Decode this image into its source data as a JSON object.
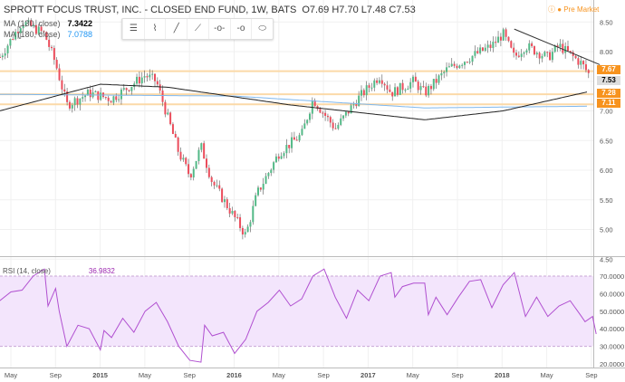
{
  "header": {
    "title": "SPROTT FOCUS TRUST, INC. - CLOSED END FUND, 1W, BATS",
    "ohlc": "O7.69 H7.70 L7.48 C7.53",
    "pre_market": "Pre Market"
  },
  "indicators": {
    "ma130": {
      "label": "MA (130, close)",
      "value": "7.3422",
      "color": "#000000"
    },
    "ma180": {
      "label": "MA (180, close)",
      "value": "7.0788",
      "color": "#2196f3"
    },
    "rsi": {
      "label": "RSI (14, close)",
      "value": "36.9832",
      "color": "#9c27b0"
    }
  },
  "toolbar": [
    "horizontal-lines-icon",
    "path-icon",
    "line-icon",
    "extended-line-icon",
    "horizontal-ray-icon",
    "ray-icon",
    "ellipse-icon"
  ],
  "chart_data": [
    {
      "type": "candlestick",
      "ylim": [
        4.5,
        8.85
      ],
      "y_ticks": [
        "8.50",
        "8.00",
        "7.50",
        "7.00",
        "6.50",
        "6.00",
        "5.50",
        "5.00",
        "4.50"
      ],
      "x_ticks": [
        "May",
        "Sep",
        "2015",
        "May",
        "Sep",
        "2016",
        "May",
        "Sep",
        "2017",
        "May",
        "Sep",
        "2018",
        "May",
        "Sep"
      ],
      "close_path": [
        [
          "2014-04",
          7.9
        ],
        [
          "2014-06",
          8.5
        ],
        [
          "2014-08",
          8.3
        ],
        [
          "2014-09",
          7.8
        ],
        [
          "2014-10",
          7.1
        ],
        [
          "2014-12",
          7.3
        ],
        [
          "2015-02",
          7.2
        ],
        [
          "2015-05",
          7.6
        ],
        [
          "2015-06",
          7.5
        ],
        [
          "2015-08",
          6.3
        ],
        [
          "2015-09",
          5.9
        ],
        [
          "2015-10",
          6.4
        ],
        [
          "2015-11",
          5.8
        ],
        [
          "2016-01",
          5.2
        ],
        [
          "2016-02",
          4.9
        ],
        [
          "2016-03",
          5.6
        ],
        [
          "2016-05",
          6.3
        ],
        [
          "2016-07",
          6.6
        ],
        [
          "2016-08",
          7.2
        ],
        [
          "2016-10",
          6.7
        ],
        [
          "2016-12",
          7.2
        ],
        [
          "2017-02",
          7.6
        ],
        [
          "2017-03",
          7.3
        ],
        [
          "2017-05",
          7.5
        ],
        [
          "2017-06",
          7.3
        ],
        [
          "2017-08",
          7.7
        ],
        [
          "2017-10",
          7.9
        ],
        [
          "2017-12",
          8.1
        ],
        [
          "2018-01",
          8.3
        ],
        [
          "2018-02",
          7.9
        ],
        [
          "2018-03",
          8.1
        ],
        [
          "2018-05",
          7.9
        ],
        [
          "2018-06",
          8.1
        ],
        [
          "2018-08",
          7.8
        ],
        [
          "2018-09",
          7.53
        ]
      ],
      "ma130": [
        [
          "2014-04",
          7.0
        ],
        [
          "2015-01",
          7.45
        ],
        [
          "2015-07",
          7.4
        ],
        [
          "2016-06",
          7.1
        ],
        [
          "2017-06",
          6.85
        ],
        [
          "2018-01",
          7.0
        ],
        [
          "2018-09",
          7.34
        ]
      ],
      "ma180": [
        [
          "2014-04",
          7.28
        ],
        [
          "2016-01",
          7.25
        ],
        [
          "2017-06",
          7.05
        ],
        [
          "2018-09",
          7.08
        ]
      ],
      "levels": [
        {
          "value": "7.67",
          "color": "#f7931e"
        },
        {
          "value": "7.28",
          "color": "#f7931e"
        },
        {
          "value": "7.11",
          "color": "#f7931e"
        }
      ],
      "last_price": "7.53",
      "trendline": [
        [
          "2018-02",
          8.38
        ],
        [
          "2018-09",
          7.78
        ]
      ]
    },
    {
      "type": "line",
      "name": "RSI",
      "ylim": [
        17,
        75
      ],
      "y_ticks": [
        "70.0000",
        "60.0000",
        "50.0000",
        "40.0000",
        "30.0000",
        "20.0000"
      ],
      "band": [
        30,
        70
      ],
      "values": [
        [
          "2014-04",
          56
        ],
        [
          "2014-05",
          61
        ],
        [
          "2014-06",
          62
        ],
        [
          "2014-07",
          70
        ],
        [
          "2014-08",
          74
        ],
        [
          "2014-08",
          53
        ],
        [
          "2014-09",
          63
        ],
        [
          "2014-09",
          50
        ],
        [
          "2014-10",
          30
        ],
        [
          "2014-11",
          42
        ],
        [
          "2014-12",
          40
        ],
        [
          "2015-01",
          28
        ],
        [
          "2015-01",
          39
        ],
        [
          "2015-02",
          35
        ],
        [
          "2015-03",
          46
        ],
        [
          "2015-04",
          38
        ],
        [
          "2015-05",
          50
        ],
        [
          "2015-06",
          55
        ],
        [
          "2015-07",
          44
        ],
        [
          "2015-08",
          30
        ],
        [
          "2015-09",
          22
        ],
        [
          "2015-10",
          21
        ],
        [
          "2015-10",
          42
        ],
        [
          "2015-11",
          36
        ],
        [
          "2015-12",
          38
        ],
        [
          "2016-01",
          26
        ],
        [
          "2016-02",
          34
        ],
        [
          "2016-03",
          50
        ],
        [
          "2016-04",
          55
        ],
        [
          "2016-05",
          62
        ],
        [
          "2016-06",
          53
        ],
        [
          "2016-07",
          57
        ],
        [
          "2016-08",
          70
        ],
        [
          "2016-09",
          74
        ],
        [
          "2016-10",
          58
        ],
        [
          "2016-11",
          46
        ],
        [
          "2016-12",
          62
        ],
        [
          "2017-01",
          56
        ],
        [
          "2017-02",
          70
        ],
        [
          "2017-03",
          72
        ],
        [
          "2017-03",
          58
        ],
        [
          "2017-04",
          64
        ],
        [
          "2017-05",
          66
        ],
        [
          "2017-06",
          66
        ],
        [
          "2017-06",
          48
        ],
        [
          "2017-07",
          58
        ],
        [
          "2017-08",
          48
        ],
        [
          "2017-09",
          58
        ],
        [
          "2017-10",
          67
        ],
        [
          "2017-11",
          68
        ],
        [
          "2017-12",
          52
        ],
        [
          "2018-01",
          65
        ],
        [
          "2018-02",
          72
        ],
        [
          "2018-03",
          47
        ],
        [
          "2018-04",
          58
        ],
        [
          "2018-05",
          47
        ],
        [
          "2018-06",
          53
        ],
        [
          "2018-07",
          56
        ],
        [
          "2018-08",
          47
        ],
        [
          "2018-08",
          44
        ],
        [
          "2018-09",
          47
        ],
        [
          "2018-09",
          37
        ]
      ]
    }
  ]
}
